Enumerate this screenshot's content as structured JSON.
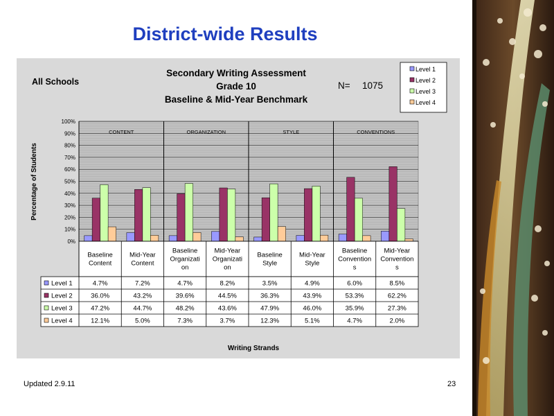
{
  "slide": {
    "title": "District-wide Results",
    "footer_left": "Updated  2.9.11",
    "page_number": "23"
  },
  "chart_data": {
    "type": "bar",
    "title_lines": [
      "Secondary Writing Assessment",
      "Grade 10",
      "Baseline & Mid-Year Benchmark"
    ],
    "scope_label": "All Schools",
    "n_label": "N=",
    "n_value": "1075",
    "ylabel": "Percentage of Students",
    "xlabel": "Writing Strands",
    "ylim": [
      0,
      100
    ],
    "y_ticks": [
      "0%",
      "10%",
      "20%",
      "30%",
      "40%",
      "50%",
      "60%",
      "70%",
      "80%",
      "90%",
      "100%"
    ],
    "grid": true,
    "legend_position": "top-right",
    "groups": [
      "CONTENT",
      "ORGANIZATION",
      "STYLE",
      "CONVENTIONS"
    ],
    "categories": [
      [
        "Baseline",
        "Content"
      ],
      [
        "Mid-Year",
        "Content"
      ],
      [
        "Baseline",
        "Organizati",
        "on"
      ],
      [
        "Mid-Year",
        "Organizati",
        "on"
      ],
      [
        "Baseline",
        "Style"
      ],
      [
        "Mid-Year",
        "Style"
      ],
      [
        "Baseline",
        "Convention",
        "s"
      ],
      [
        "Mid-Year",
        "Convention",
        "s"
      ]
    ],
    "series": [
      {
        "name": "Level 1",
        "color": "#9999ff",
        "values": [
          4.7,
          7.2,
          4.7,
          8.2,
          3.5,
          4.9,
          6.0,
          8.5
        ],
        "labels": [
          "4.7%",
          "7.2%",
          "4.7%",
          "8.2%",
          "3.5%",
          "4.9%",
          "6.0%",
          "8.5%"
        ]
      },
      {
        "name": "Level 2",
        "color": "#993366",
        "values": [
          36.0,
          43.2,
          39.6,
          44.5,
          36.3,
          43.9,
          53.3,
          62.2
        ],
        "labels": [
          "36.0%",
          "43.2%",
          "39.6%",
          "44.5%",
          "36.3%",
          "43.9%",
          "53.3%",
          "62.2%"
        ]
      },
      {
        "name": "Level 3",
        "color": "#ccffaa",
        "values": [
          47.2,
          44.7,
          48.2,
          43.6,
          47.9,
          46.0,
          35.9,
          27.3
        ],
        "labels": [
          "47.2%",
          "44.7%",
          "48.2%",
          "43.6%",
          "47.9%",
          "46.0%",
          "35.9%",
          "27.3%"
        ]
      },
      {
        "name": "Level 4",
        "color": "#ffcc99",
        "values": [
          12.1,
          5.0,
          7.3,
          3.7,
          12.3,
          5.1,
          4.7,
          2.0
        ],
        "labels": [
          "12.1%",
          "5.0%",
          "7.3%",
          "3.7%",
          "12.3%",
          "5.1%",
          "4.7%",
          "2.0%"
        ]
      }
    ]
  }
}
